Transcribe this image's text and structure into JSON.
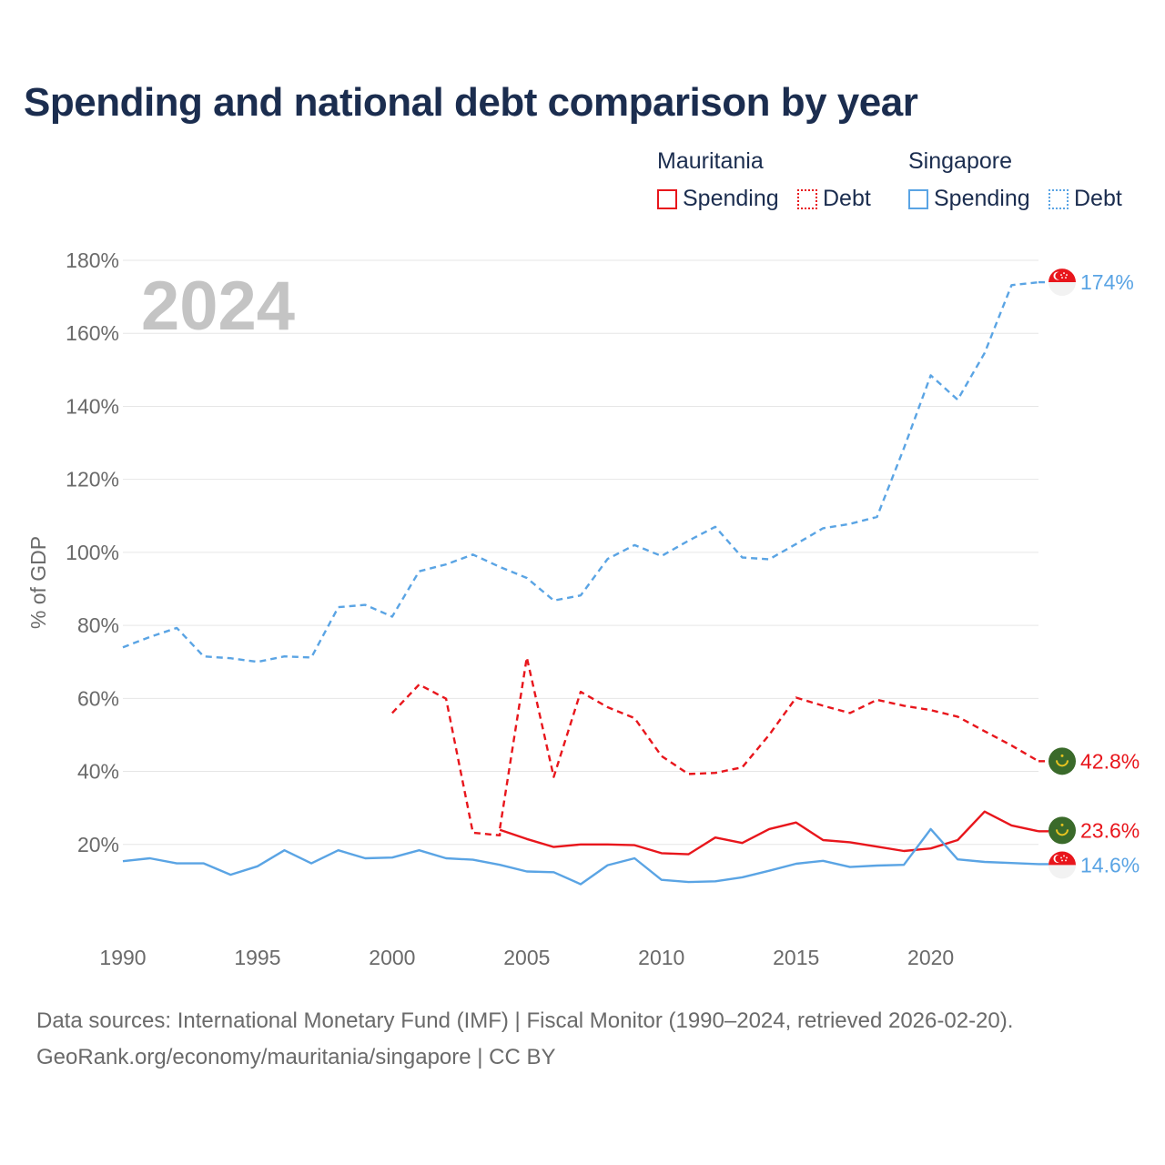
{
  "chart_data": {
    "type": "line",
    "title": "Spending and national debt comparison by year",
    "xlabel": "",
    "ylabel": "% of GDP",
    "xlim": [
      1990,
      2024
    ],
    "ylim": [
      0,
      180
    ],
    "x_ticks": [
      1990,
      1995,
      2000,
      2005,
      2010,
      2015,
      2020
    ],
    "x_tick_labels": [
      "1990",
      "1995",
      "2000",
      "2005",
      "2010",
      "2015",
      "2020"
    ],
    "y_ticks": [
      20,
      40,
      60,
      80,
      100,
      120,
      140,
      160,
      180
    ],
    "y_tick_labels": [
      "20%",
      "40%",
      "60%",
      "80%",
      "100%",
      "120%",
      "140%",
      "160%",
      "180%"
    ],
    "year_watermark": "2024",
    "legend": {
      "groups": [
        {
          "name": "Mauritania",
          "items": [
            "Spending",
            "Debt"
          ]
        },
        {
          "name": "Singapore",
          "items": [
            "Spending",
            "Debt"
          ]
        }
      ],
      "placement": "top-right"
    },
    "series": [
      {
        "name": "Singapore Debt",
        "country": "Singapore",
        "measure": "Debt",
        "color": "#5aa4e4",
        "style": "dashed",
        "x": [
          1990,
          1991,
          1992,
          1993,
          1994,
          1995,
          1996,
          1997,
          1998,
          1999,
          2000,
          2001,
          2002,
          2003,
          2004,
          2005,
          2006,
          2007,
          2008,
          2009,
          2010,
          2011,
          2012,
          2013,
          2014,
          2015,
          2016,
          2017,
          2018,
          2019,
          2020,
          2021,
          2022,
          2023,
          2024
        ],
        "values": [
          74,
          76.8,
          79.3,
          71.5,
          71,
          70,
          71.5,
          71.2,
          85,
          85.6,
          82.4,
          94.8,
          96.7,
          99.4,
          96,
          93,
          86.8,
          88.2,
          98.2,
          102,
          99,
          103.2,
          107,
          98.6,
          98.1,
          102.3,
          106.6,
          107.8,
          109.7,
          128.5,
          148.5,
          141.8,
          154.6,
          173.2,
          174
        ],
        "end_label": "174%",
        "flag": "singapore-flag"
      },
      {
        "name": "Mauritania Debt",
        "country": "Mauritania",
        "measure": "Debt",
        "color": "#e8161c",
        "style": "dashed",
        "x": [
          2000,
          2001,
          2002,
          2003,
          2004,
          2004,
          2005,
          2006,
          2007,
          2008,
          2009,
          2010,
          2011,
          2012,
          2013,
          2014,
          2015,
          2016,
          2017,
          2018,
          2019,
          2020,
          2021,
          2022,
          2023,
          2024
        ],
        "values": [
          56,
          63.8,
          59.9,
          23.2,
          22.5,
          24.3,
          71.2,
          38.5,
          61.8,
          57.6,
          54.6,
          44.2,
          39.3,
          39.6,
          41.1,
          50,
          60.2,
          58,
          56,
          59.6,
          58,
          56.8,
          55,
          51,
          47.1,
          42.8
        ],
        "end_label": "42.8%",
        "flag": "mauritania-flag"
      },
      {
        "name": "Mauritania Spending",
        "country": "Mauritania",
        "measure": "Spending",
        "color": "#e8161c",
        "style": "solid",
        "x": [
          2004,
          2005,
          2006,
          2007,
          2008,
          2009,
          2010,
          2011,
          2012,
          2013,
          2014,
          2015,
          2016,
          2017,
          2018,
          2019,
          2020,
          2021,
          2022,
          2023,
          2024
        ],
        "values": [
          24,
          21.5,
          19.3,
          20,
          20,
          19.8,
          17.6,
          17.3,
          21.9,
          20.4,
          24.2,
          26,
          21.2,
          20.6,
          19.4,
          18.2,
          18.9,
          21.2,
          29,
          25.2,
          23.6
        ],
        "end_label": "23.6%",
        "flag": "mauritania-flag"
      },
      {
        "name": "Singapore Spending",
        "country": "Singapore",
        "measure": "Spending",
        "color": "#5aa4e4",
        "style": "solid",
        "x": [
          1990,
          1991,
          1992,
          1993,
          1994,
          1995,
          1996,
          1997,
          1998,
          1999,
          2000,
          2001,
          2002,
          2003,
          2004,
          2005,
          2006,
          2007,
          2008,
          2009,
          2010,
          2011,
          2012,
          2013,
          2014,
          2015,
          2016,
          2017,
          2018,
          2019,
          2020,
          2021,
          2022,
          2023,
          2024
        ],
        "values": [
          15.4,
          16.2,
          14.8,
          14.8,
          11.7,
          14,
          18.4,
          14.8,
          18.4,
          16.2,
          16.4,
          18.4,
          16.2,
          15.8,
          14.4,
          12.6,
          12.4,
          9.1,
          14.3,
          16.2,
          10.3,
          9.7,
          9.9,
          11,
          12.8,
          14.7,
          15.5,
          13.8,
          14.2,
          14.4,
          24.2,
          15.9,
          15.2,
          14.9,
          14.6
        ],
        "end_label": "14.6%",
        "flag": "singapore-flag"
      }
    ]
  },
  "source": {
    "line1": "Data sources: International Monetary Fund (IMF) | Fiscal Monitor (1990–2024, retrieved 2026-02-20).",
    "line2": "GeoRank.org/economy/mauritania/singapore | CC BY"
  }
}
